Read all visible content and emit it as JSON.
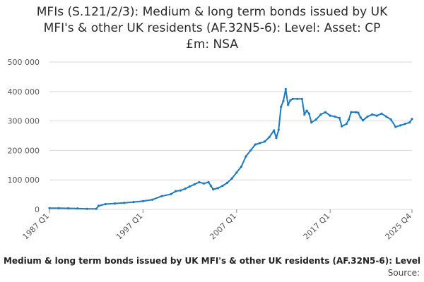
{
  "title_lines": [
    "MFIs (S.121/2/3): Medium & long term bonds issued by UK",
    "MFI's & other UK residents (AF.32N5-6): Level: Asset: CP",
    "£m: NSA"
  ],
  "legend_label": "Medium & long term bonds issued by UK MFI's & other UK residents (AF.32N5-6): Level",
  "source_label": "Source:",
  "colors": {
    "series": "#1b7ac0",
    "grid": "#d9d9d9",
    "axis_text": "#555555"
  },
  "chart_data": {
    "type": "line",
    "title": "MFIs (S.121/2/3): Medium & long term bonds issued by UK MFI's & other UK residents (AF.32N5-6): Level: Asset: CP £m: NSA",
    "xlabel": "",
    "ylabel": "",
    "ylim": [
      0,
      500000
    ],
    "yticks": [
      0,
      100000,
      200000,
      300000,
      400000,
      500000
    ],
    "ytick_labels": [
      "0",
      "100 000",
      "200 000",
      "300 000",
      "400 000",
      "500 000"
    ],
    "xticks": [
      "1987 Q1",
      "1997 Q1",
      "2007 Q1",
      "2017 Q1",
      "2025 Q4"
    ],
    "grid": true,
    "legend_position": "bottom",
    "series": [
      {
        "name": "Medium & long term bonds issued by UK MFI's & other UK residents (AF.32N5-6): Level",
        "points": [
          [
            "1987 Q1",
            4000
          ],
          [
            "1988 Q1",
            4000
          ],
          [
            "1989 Q1",
            3500
          ],
          [
            "1990 Q1",
            3000
          ],
          [
            "1991 Q1",
            2000
          ],
          [
            "1992 Q1",
            2000
          ],
          [
            "1992 Q2",
            12000
          ],
          [
            "1993 Q1",
            18000
          ],
          [
            "1994 Q1",
            20000
          ],
          [
            "1995 Q1",
            22000
          ],
          [
            "1996 Q1",
            25000
          ],
          [
            "1997 Q1",
            28000
          ],
          [
            "1998 Q1",
            33000
          ],
          [
            "1999 Q1",
            45000
          ],
          [
            "2000 Q1",
            52000
          ],
          [
            "2000 Q3",
            62000
          ],
          [
            "2001 Q1",
            64000
          ],
          [
            "2001 Q3",
            70000
          ],
          [
            "2002 Q1",
            78000
          ],
          [
            "2002 Q3",
            85000
          ],
          [
            "2003 Q1",
            92000
          ],
          [
            "2003 Q3",
            88000
          ],
          [
            "2004 Q1",
            92000
          ],
          [
            "2004 Q2",
            80000
          ],
          [
            "2004 Q3",
            68000
          ],
          [
            "2005 Q1",
            72000
          ],
          [
            "2005 Q3",
            80000
          ],
          [
            "2006 Q1",
            90000
          ],
          [
            "2006 Q3",
            105000
          ],
          [
            "2007 Q1",
            125000
          ],
          [
            "2007 Q3",
            145000
          ],
          [
            "2008 Q1",
            180000
          ],
          [
            "2008 Q3",
            200000
          ],
          [
            "2009 Q1",
            220000
          ],
          [
            "2009 Q3",
            225000
          ],
          [
            "2010 Q1",
            230000
          ],
          [
            "2010 Q3",
            245000
          ],
          [
            "2011 Q1",
            268000
          ],
          [
            "2011 Q2",
            242000
          ],
          [
            "2011 Q3",
            270000
          ],
          [
            "2011 Q4",
            348000
          ],
          [
            "2012 Q1",
            368000
          ],
          [
            "2012 Q2",
            408000
          ],
          [
            "2012 Q3",
            355000
          ],
          [
            "2012 Q4",
            370000
          ],
          [
            "2013 Q1",
            375000
          ],
          [
            "2013 Q3",
            375000
          ],
          [
            "2014 Q1",
            375000
          ],
          [
            "2014 Q2",
            322000
          ],
          [
            "2014 Q3",
            335000
          ],
          [
            "2014 Q4",
            325000
          ],
          [
            "2015 Q1",
            295000
          ],
          [
            "2015 Q3",
            305000
          ],
          [
            "2016 Q1",
            322000
          ],
          [
            "2016 Q3",
            330000
          ],
          [
            "2017 Q1",
            318000
          ],
          [
            "2017 Q3",
            315000
          ],
          [
            "2018 Q1",
            310000
          ],
          [
            "2018 Q2",
            282000
          ],
          [
            "2018 Q4",
            290000
          ],
          [
            "2019 Q1",
            305000
          ],
          [
            "2019 Q2",
            330000
          ],
          [
            "2019 Q4",
            330000
          ],
          [
            "2020 Q1",
            328000
          ],
          [
            "2020 Q2",
            312000
          ],
          [
            "2020 Q3",
            302000
          ],
          [
            "2021 Q1",
            315000
          ],
          [
            "2021 Q3",
            322000
          ],
          [
            "2022 Q1",
            318000
          ],
          [
            "2022 Q3",
            325000
          ],
          [
            "2023 Q1",
            315000
          ],
          [
            "2023 Q3",
            305000
          ],
          [
            "2024 Q1",
            280000
          ],
          [
            "2024 Q3",
            285000
          ],
          [
            "2025 Q1",
            290000
          ],
          [
            "2025 Q3",
            295000
          ],
          [
            "2025 Q4",
            307000
          ]
        ]
      }
    ]
  }
}
